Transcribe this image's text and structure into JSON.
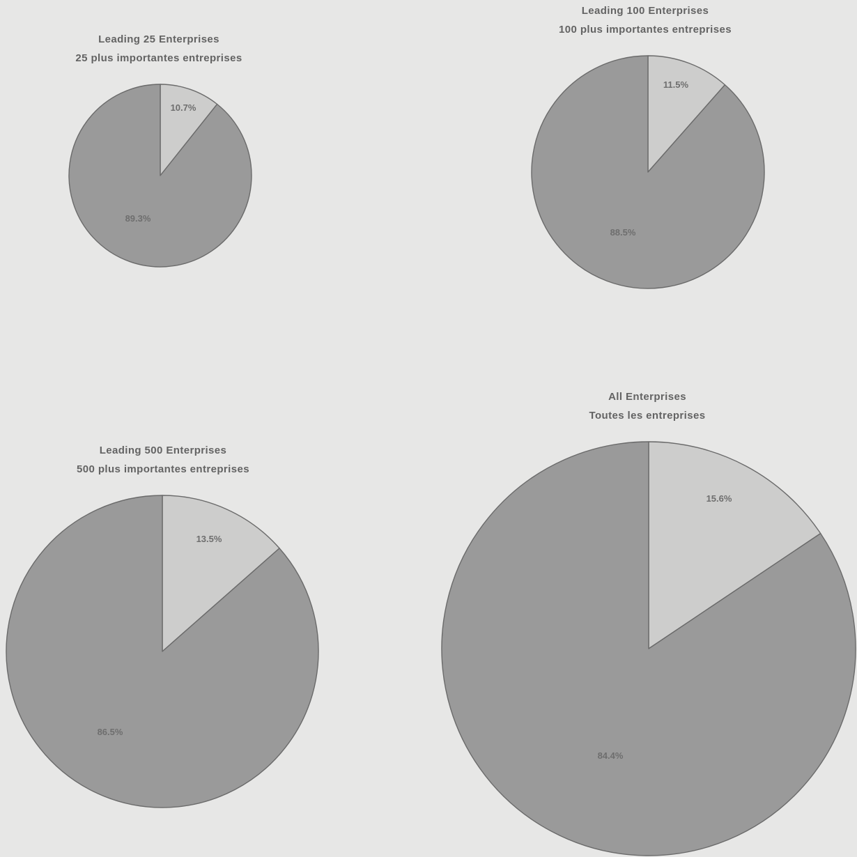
{
  "colors": {
    "background": "#e7e7e6",
    "small_share": "#cdcdcc",
    "large_share": "#9a9a9a",
    "outline": "#6a6a6a",
    "text": "#636363"
  },
  "chart_data": [
    {
      "type": "pie",
      "title": "Leading 25 Enterprises",
      "subtitle": "25 plus importantes entreprises",
      "values": [
        10.7,
        89.3
      ],
      "labels": [
        "10.7%",
        "89.3%"
      ]
    },
    {
      "type": "pie",
      "title": "Leading 100 Enterprises",
      "subtitle": "100 plus importantes entreprises",
      "values": [
        11.5,
        88.5
      ],
      "labels": [
        "11.5%",
        "88.5%"
      ]
    },
    {
      "type": "pie",
      "title": "Leading 500 Enterprises",
      "subtitle": "500 plus importantes entreprises",
      "values": [
        13.5,
        86.5
      ],
      "labels": [
        "13.5%",
        "86.5%"
      ]
    },
    {
      "type": "pie",
      "title": "All Enterprises",
      "subtitle": "Toutes les entreprises",
      "values": [
        15.6,
        84.4
      ],
      "labels": [
        "15.6%",
        "84.4%"
      ]
    }
  ]
}
